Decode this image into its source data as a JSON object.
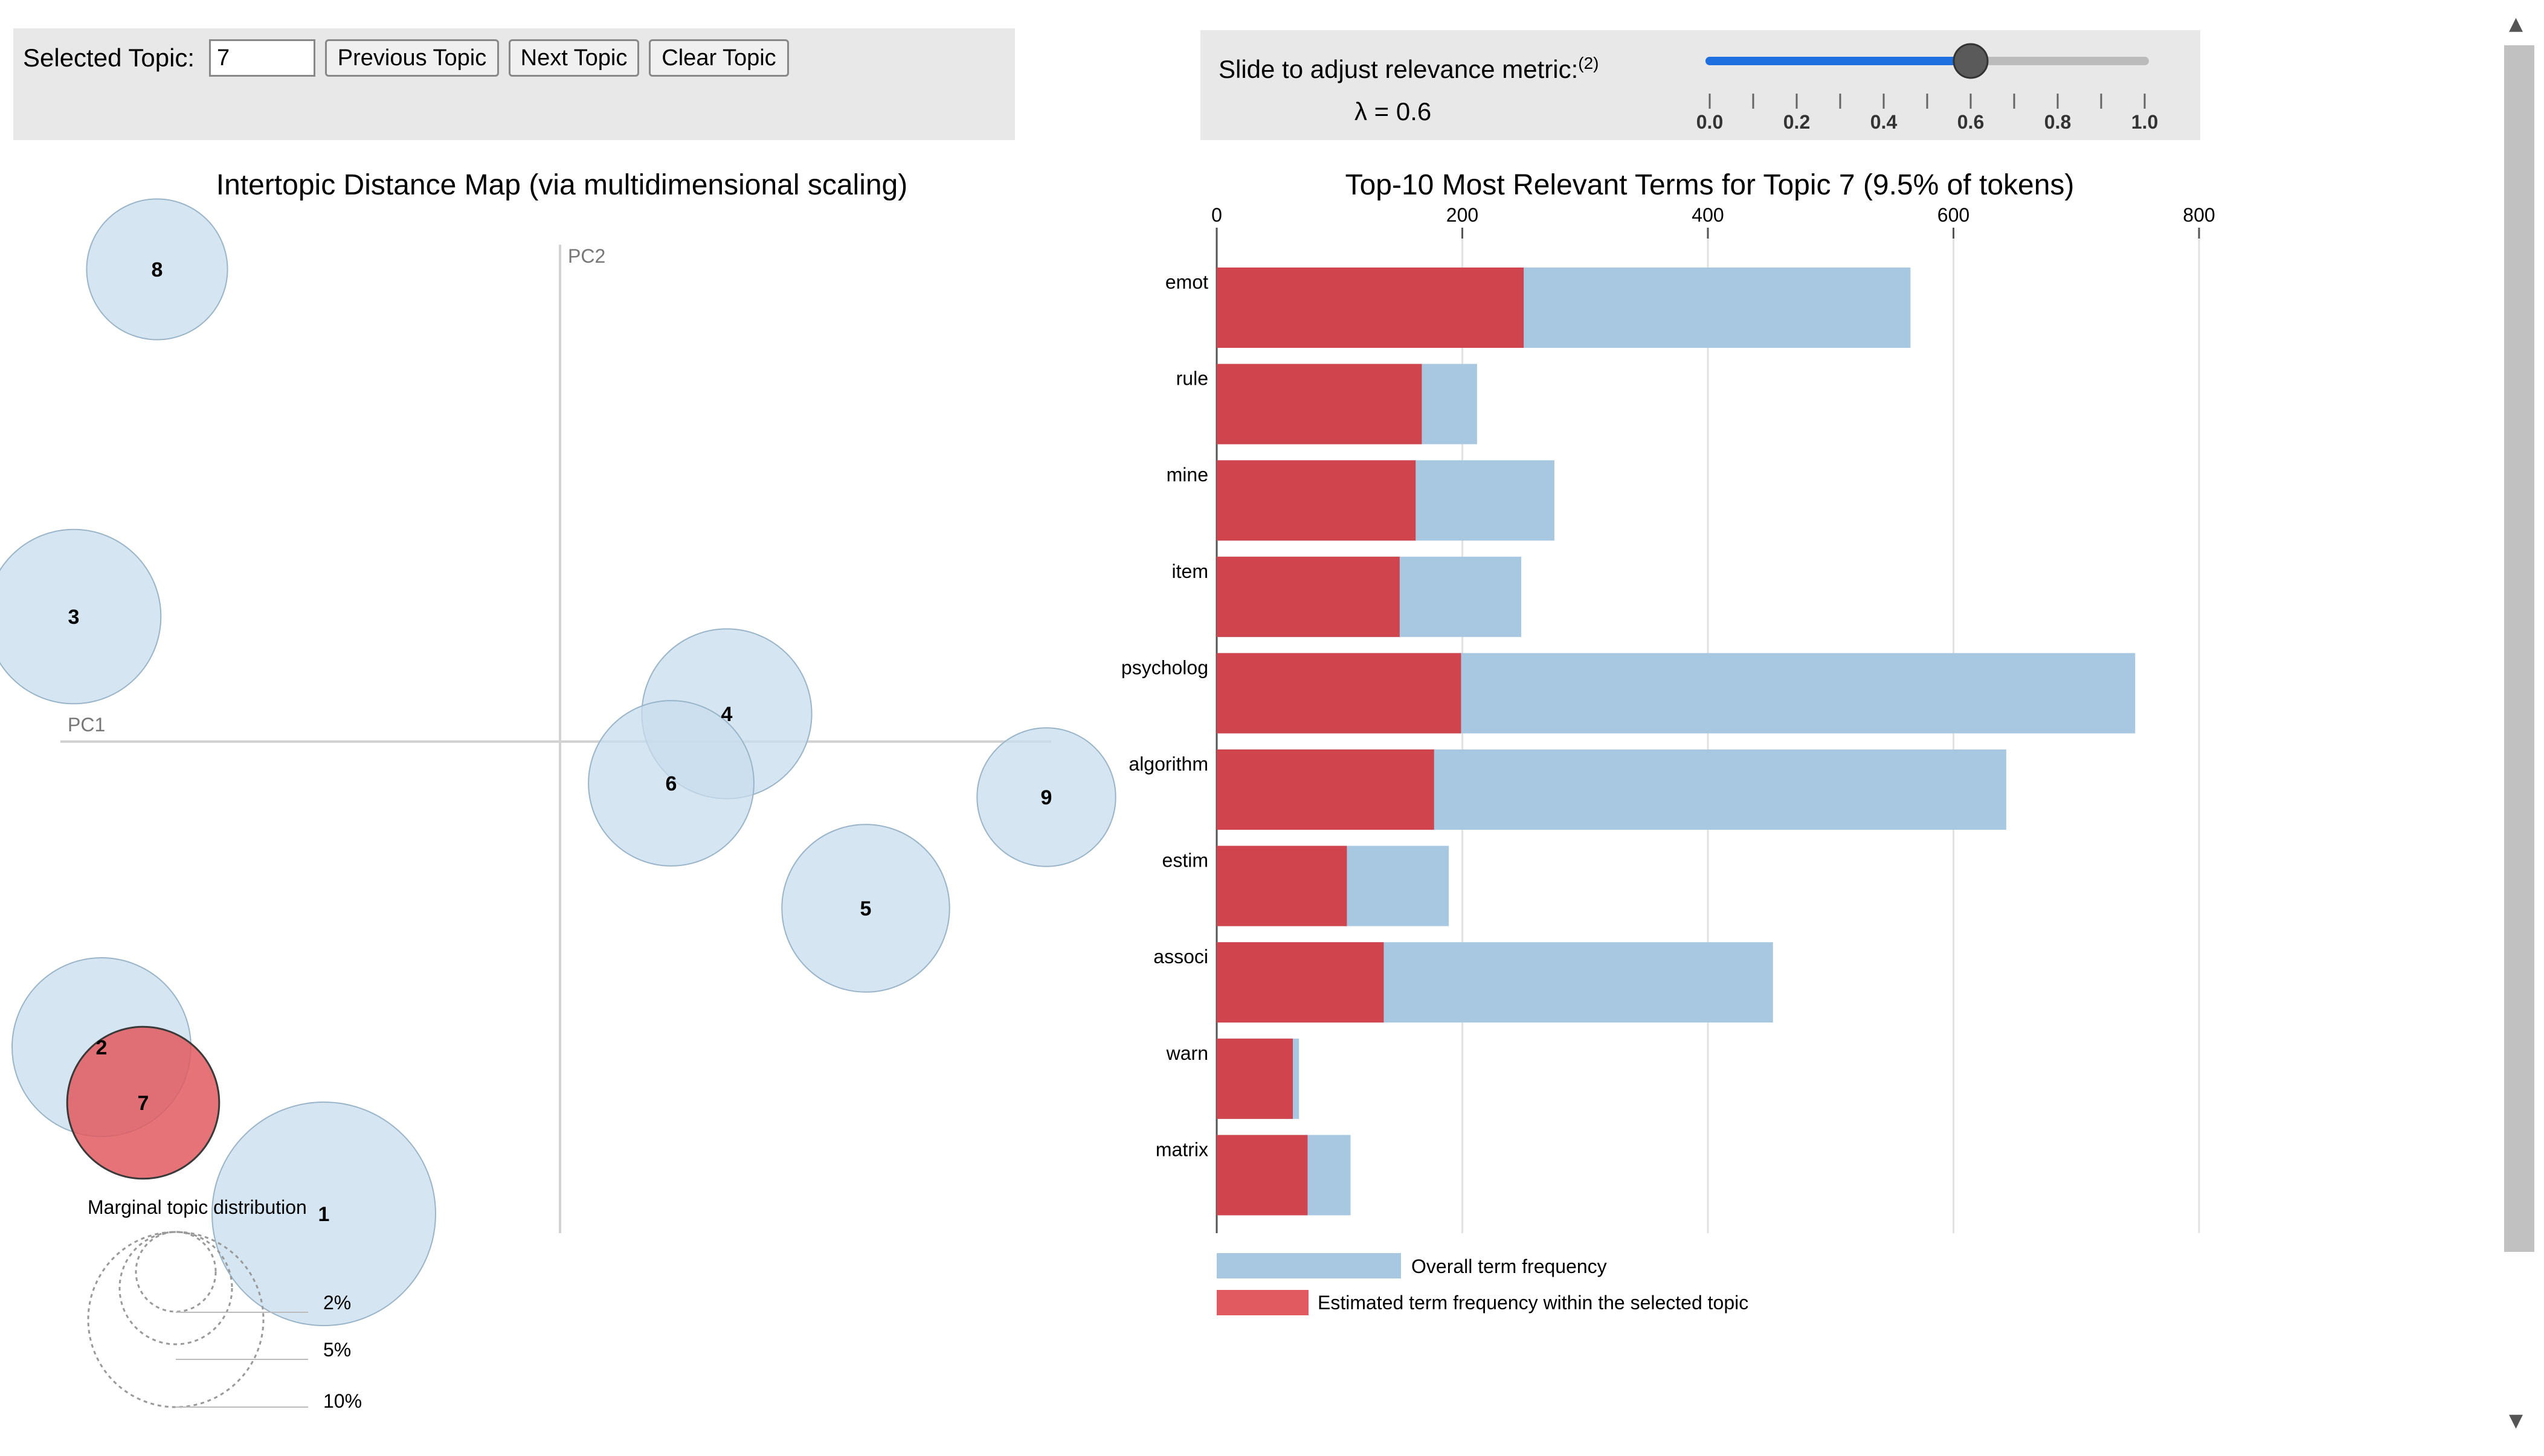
{
  "controls": {
    "selected_topic_label": "Selected Topic:",
    "selected_topic_value": "7",
    "previous_label": "Previous Topic",
    "next_label": "Next Topic",
    "clear_label": "Clear Topic"
  },
  "slider": {
    "label": "Slide to adjust relevance metric:",
    "footnote": "(2)",
    "lambda_text": "λ = 0.6",
    "value": 0.6,
    "ticks": [
      "0.0",
      "0.2",
      "0.4",
      "0.6",
      "0.8",
      "1.0"
    ]
  },
  "map": {
    "title": "Intertopic Distance Map (via multidimensional scaling)",
    "pc1_label": "PC1",
    "pc2_label": "PC2",
    "legend_title": "Marginal topic distribution",
    "legend_items": [
      "2%",
      "5%",
      "10%"
    ]
  },
  "bar": {
    "title": "Top-10 Most Relevant Terms for Topic 7 (9.5% of tokens)",
    "legend_overall": "Overall term frequency",
    "legend_selected": "Estimated term frequency within the selected topic"
  },
  "colors": {
    "overall": "#a8c8e1",
    "selected": "#d0444e",
    "bubble": "#c7dcec",
    "bubble_selected": "#e05a5f",
    "panel": "#e8e8e8"
  },
  "chart_data": [
    {
      "type": "scatter",
      "title": "Intertopic Distance Map (via multidimensional scaling)",
      "xlabel": "PC1",
      "ylabel": "PC2",
      "selected_topic": 7,
      "points": [
        {
          "topic": "1",
          "pc1": -0.17,
          "pc2": -0.34,
          "size": 1.0
        },
        {
          "topic": "2",
          "pc1": -0.33,
          "pc2": -0.22,
          "size": 0.8
        },
        {
          "topic": "3",
          "pc1": -0.35,
          "pc2": 0.09,
          "size": 0.78
        },
        {
          "topic": "4",
          "pc1": 0.12,
          "pc2": 0.02,
          "size": 0.76
        },
        {
          "topic": "5",
          "pc1": 0.22,
          "pc2": -0.12,
          "size": 0.75
        },
        {
          "topic": "6",
          "pc1": 0.08,
          "pc2": -0.03,
          "size": 0.74
        },
        {
          "topic": "7",
          "pc1": -0.3,
          "pc2": -0.26,
          "size": 0.68
        },
        {
          "topic": "8",
          "pc1": -0.29,
          "pc2": 0.34,
          "size": 0.63
        },
        {
          "topic": "9",
          "pc1": 0.35,
          "pc2": -0.04,
          "size": 0.62
        }
      ]
    },
    {
      "type": "bar",
      "orientation": "horizontal",
      "title": "Top-10 Most Relevant Terms for Topic 7 (9.5% of tokens)",
      "categories": [
        "emot",
        "rule",
        "mine",
        "item",
        "psycholog",
        "algorithm",
        "estim",
        "associ",
        "warn",
        "matrix"
      ],
      "series": [
        {
          "name": "Overall term frequency",
          "values": [
            565,
            212,
            275,
            248,
            748,
            643,
            189,
            453,
            67,
            109
          ]
        },
        {
          "name": "Estimated term frequency within the selected topic",
          "values": [
            250,
            167,
            162,
            149,
            199,
            177,
            106,
            136,
            62,
            74
          ]
        }
      ],
      "xlim": [
        0,
        800
      ],
      "xticks": [
        "0",
        "200",
        "400",
        "600",
        "800"
      ]
    }
  ]
}
